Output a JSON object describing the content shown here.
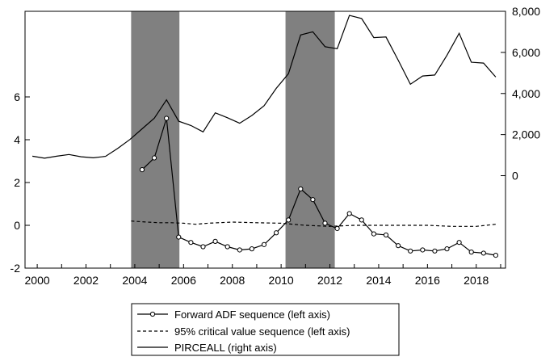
{
  "chart_data": {
    "type": "line",
    "title": "",
    "xlabel": "",
    "x_ticks": [
      "2000",
      "2002",
      "2004",
      "2006",
      "2008",
      "2010",
      "2012",
      "2014",
      "2016",
      "2018"
    ],
    "left_axis": {
      "ylim": [
        -2,
        10
      ],
      "ticks": [
        "-2",
        "0",
        "2",
        "4",
        "6"
      ]
    },
    "right_axis": {
      "ylim": [
        -4500,
        8000
      ],
      "ticks": [
        "0",
        "2,000",
        "4,000",
        "6,000",
        "8,000"
      ]
    },
    "shaded_periods": [
      [
        2003.85,
        2005.83
      ],
      [
        2010.18,
        2012.2
      ]
    ],
    "legend_position": "bottom-center",
    "colors": {
      "line": "#000000",
      "shade": "#808080"
    },
    "series": [
      {
        "name": "Forward ADF sequence (left axis)",
        "axis": "left",
        "style": "solid-circles",
        "x": [
          2004.3,
          2004.8,
          2005.3,
          2005.8,
          2006.3,
          2006.8,
          2007.3,
          2007.8,
          2008.3,
          2008.8,
          2009.3,
          2009.8,
          2010.3,
          2010.8,
          2011.3,
          2011.8,
          2012.3,
          2012.8,
          2013.3,
          2013.8,
          2014.3,
          2014.8,
          2015.3,
          2015.8,
          2016.3,
          2016.8,
          2017.3,
          2017.8,
          2018.3,
          2018.8
        ],
        "y": [
          2.6,
          3.15,
          5.0,
          -0.55,
          -0.8,
          -1.0,
          -0.75,
          -1.0,
          -1.15,
          -1.1,
          -0.9,
          -0.35,
          0.25,
          1.7,
          1.2,
          0.1,
          -0.15,
          0.55,
          0.25,
          -0.4,
          -0.45,
          -0.95,
          -1.2,
          -1.15,
          -1.2,
          -1.1,
          -0.8,
          -1.25,
          -1.3,
          -1.4
        ]
      },
      {
        "name": "95% critical value sequence (left axis)",
        "axis": "left",
        "style": "dashed",
        "x": [
          2003.85,
          2004.5,
          2005.0,
          2005.5,
          2006.0,
          2006.5,
          2007.0,
          2008.0,
          2009.0,
          2010.0,
          2011.0,
          2012.0,
          2013.0,
          2014.0,
          2015.0,
          2016.0,
          2017.0,
          2018.0,
          2018.8
        ],
        "y": [
          0.2,
          0.15,
          0.12,
          0.12,
          0.1,
          0.05,
          0.1,
          0.15,
          0.12,
          0.1,
          0.0,
          -0.05,
          0.0,
          0.0,
          0.0,
          0.0,
          -0.05,
          -0.05,
          0.05
        ]
      },
      {
        "name": "PIRCEALL (right axis)",
        "axis": "right",
        "style": "solid",
        "x": [
          1999.8,
          2000.3,
          2000.8,
          2001.3,
          2001.8,
          2002.3,
          2002.8,
          2003.3,
          2003.8,
          2004.3,
          2004.8,
          2005.3,
          2005.8,
          2006.3,
          2006.8,
          2007.3,
          2007.8,
          2008.3,
          2008.8,
          2009.3,
          2009.8,
          2010.3,
          2010.8,
          2011.3,
          2011.8,
          2012.3,
          2012.8,
          2013.3,
          2013.8,
          2014.3,
          2014.8,
          2015.3,
          2015.8,
          2016.3,
          2016.8,
          2017.3,
          2017.8,
          2018.3,
          2018.8
        ],
        "y": [
          950,
          850,
          950,
          1030,
          920,
          870,
          940,
          1330,
          1760,
          2280,
          2800,
          3690,
          2650,
          2440,
          2130,
          3060,
          2820,
          2550,
          2930,
          3400,
          4250,
          4960,
          6850,
          7000,
          6280,
          6180,
          7800,
          7650,
          6720,
          6750,
          5620,
          4450,
          4850,
          4900,
          5860,
          6930,
          5520,
          5480,
          4800
        ]
      }
    ]
  }
}
